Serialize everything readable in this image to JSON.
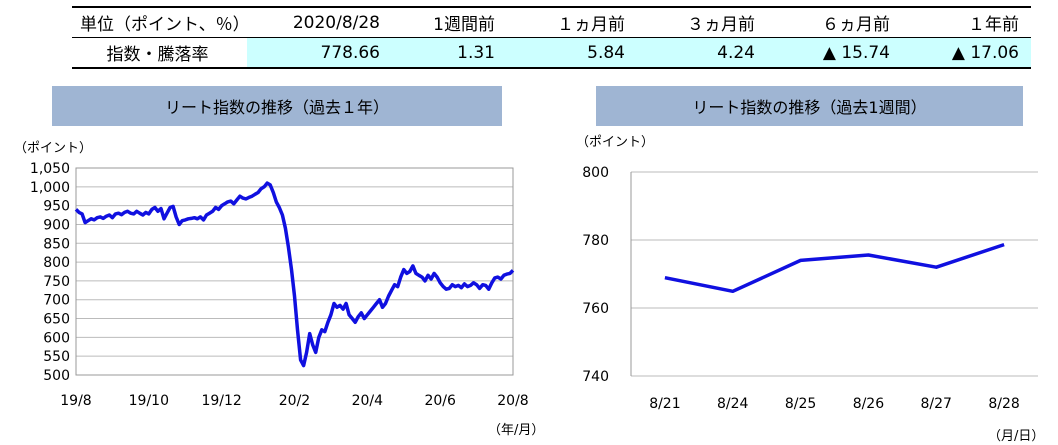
{
  "summary": {
    "headers": [
      "単位（ポイント、％）",
      "2020/8/28",
      "1週間前",
      "１ヵ月前",
      "３ヵ月前",
      "６ヵ月前",
      "１年前"
    ],
    "row_label": "指数・騰落率",
    "values": [
      "778.66",
      "1.31",
      "5.84",
      "4.24",
      "▲ 15.74",
      "▲ 17.06"
    ]
  },
  "chart_data": [
    {
      "type": "line",
      "title": "リート指数の推移（過去１年）",
      "ylabel": "（ポイント）",
      "xlabel": "（年/月）",
      "ylim": [
        500,
        1050
      ],
      "yticks": [
        500,
        550,
        600,
        650,
        700,
        750,
        800,
        850,
        900,
        950,
        1000,
        1050
      ],
      "ytick_labels": [
        "500",
        "550",
        "600",
        "650",
        "700",
        "750",
        "800",
        "850",
        "900",
        "950",
        "1,000",
        "1,050"
      ],
      "xtick_labels": [
        "19/8",
        "19/10",
        "19/12",
        "20/2",
        "20/4",
        "20/6",
        "20/8"
      ],
      "grid": true,
      "color": "#1010e0",
      "series": [
        {
          "values": [
            940,
            932,
            928,
            905,
            910,
            915,
            912,
            918,
            920,
            916,
            922,
            925,
            918,
            928,
            930,
            926,
            932,
            935,
            930,
            928,
            935,
            930,
            925,
            932,
            928,
            940,
            945,
            935,
            942,
            915,
            930,
            945,
            948,
            920,
            900,
            910,
            912,
            915,
            916,
            918,
            915,
            920,
            912,
            925,
            930,
            935,
            945,
            940,
            950,
            955,
            960,
            962,
            955,
            965,
            975,
            970,
            968,
            972,
            975,
            980,
            985,
            995,
            1000,
            1010,
            1005,
            985,
            960,
            945,
            925,
            890,
            840,
            780,
            710,
            620,
            540,
            525,
            560,
            610,
            580,
            560,
            600,
            620,
            615,
            640,
            660,
            690,
            680,
            685,
            675,
            690,
            660,
            650,
            640,
            655,
            665,
            650,
            660,
            670,
            680,
            690,
            700,
            680,
            690,
            710,
            725,
            740,
            735,
            760,
            780,
            770,
            775,
            790,
            770,
            765,
            760,
            750,
            765,
            755,
            770,
            760,
            745,
            735,
            728,
            730,
            740,
            735,
            738,
            732,
            742,
            735,
            738,
            745,
            740,
            730,
            740,
            738,
            728,
            745,
            758,
            760,
            755,
            765,
            768,
            770,
            778
          ]
        }
      ]
    },
    {
      "type": "line",
      "title": "リート指数の推移（過去1週間）",
      "ylabel": "（ポイント）",
      "xlabel": "（月/日）",
      "ylim": [
        740,
        800
      ],
      "yticks": [
        740,
        760,
        780,
        800
      ],
      "ytick_labels": [
        "740",
        "760",
        "780",
        "800"
      ],
      "categories": [
        "8/21",
        "8/24",
        "8/25",
        "8/26",
        "8/27",
        "8/28"
      ],
      "grid": true,
      "color": "#1010e0",
      "series": [
        {
          "values": [
            768.9,
            764.9,
            774.0,
            775.6,
            772.0,
            778.66
          ]
        }
      ]
    }
  ]
}
